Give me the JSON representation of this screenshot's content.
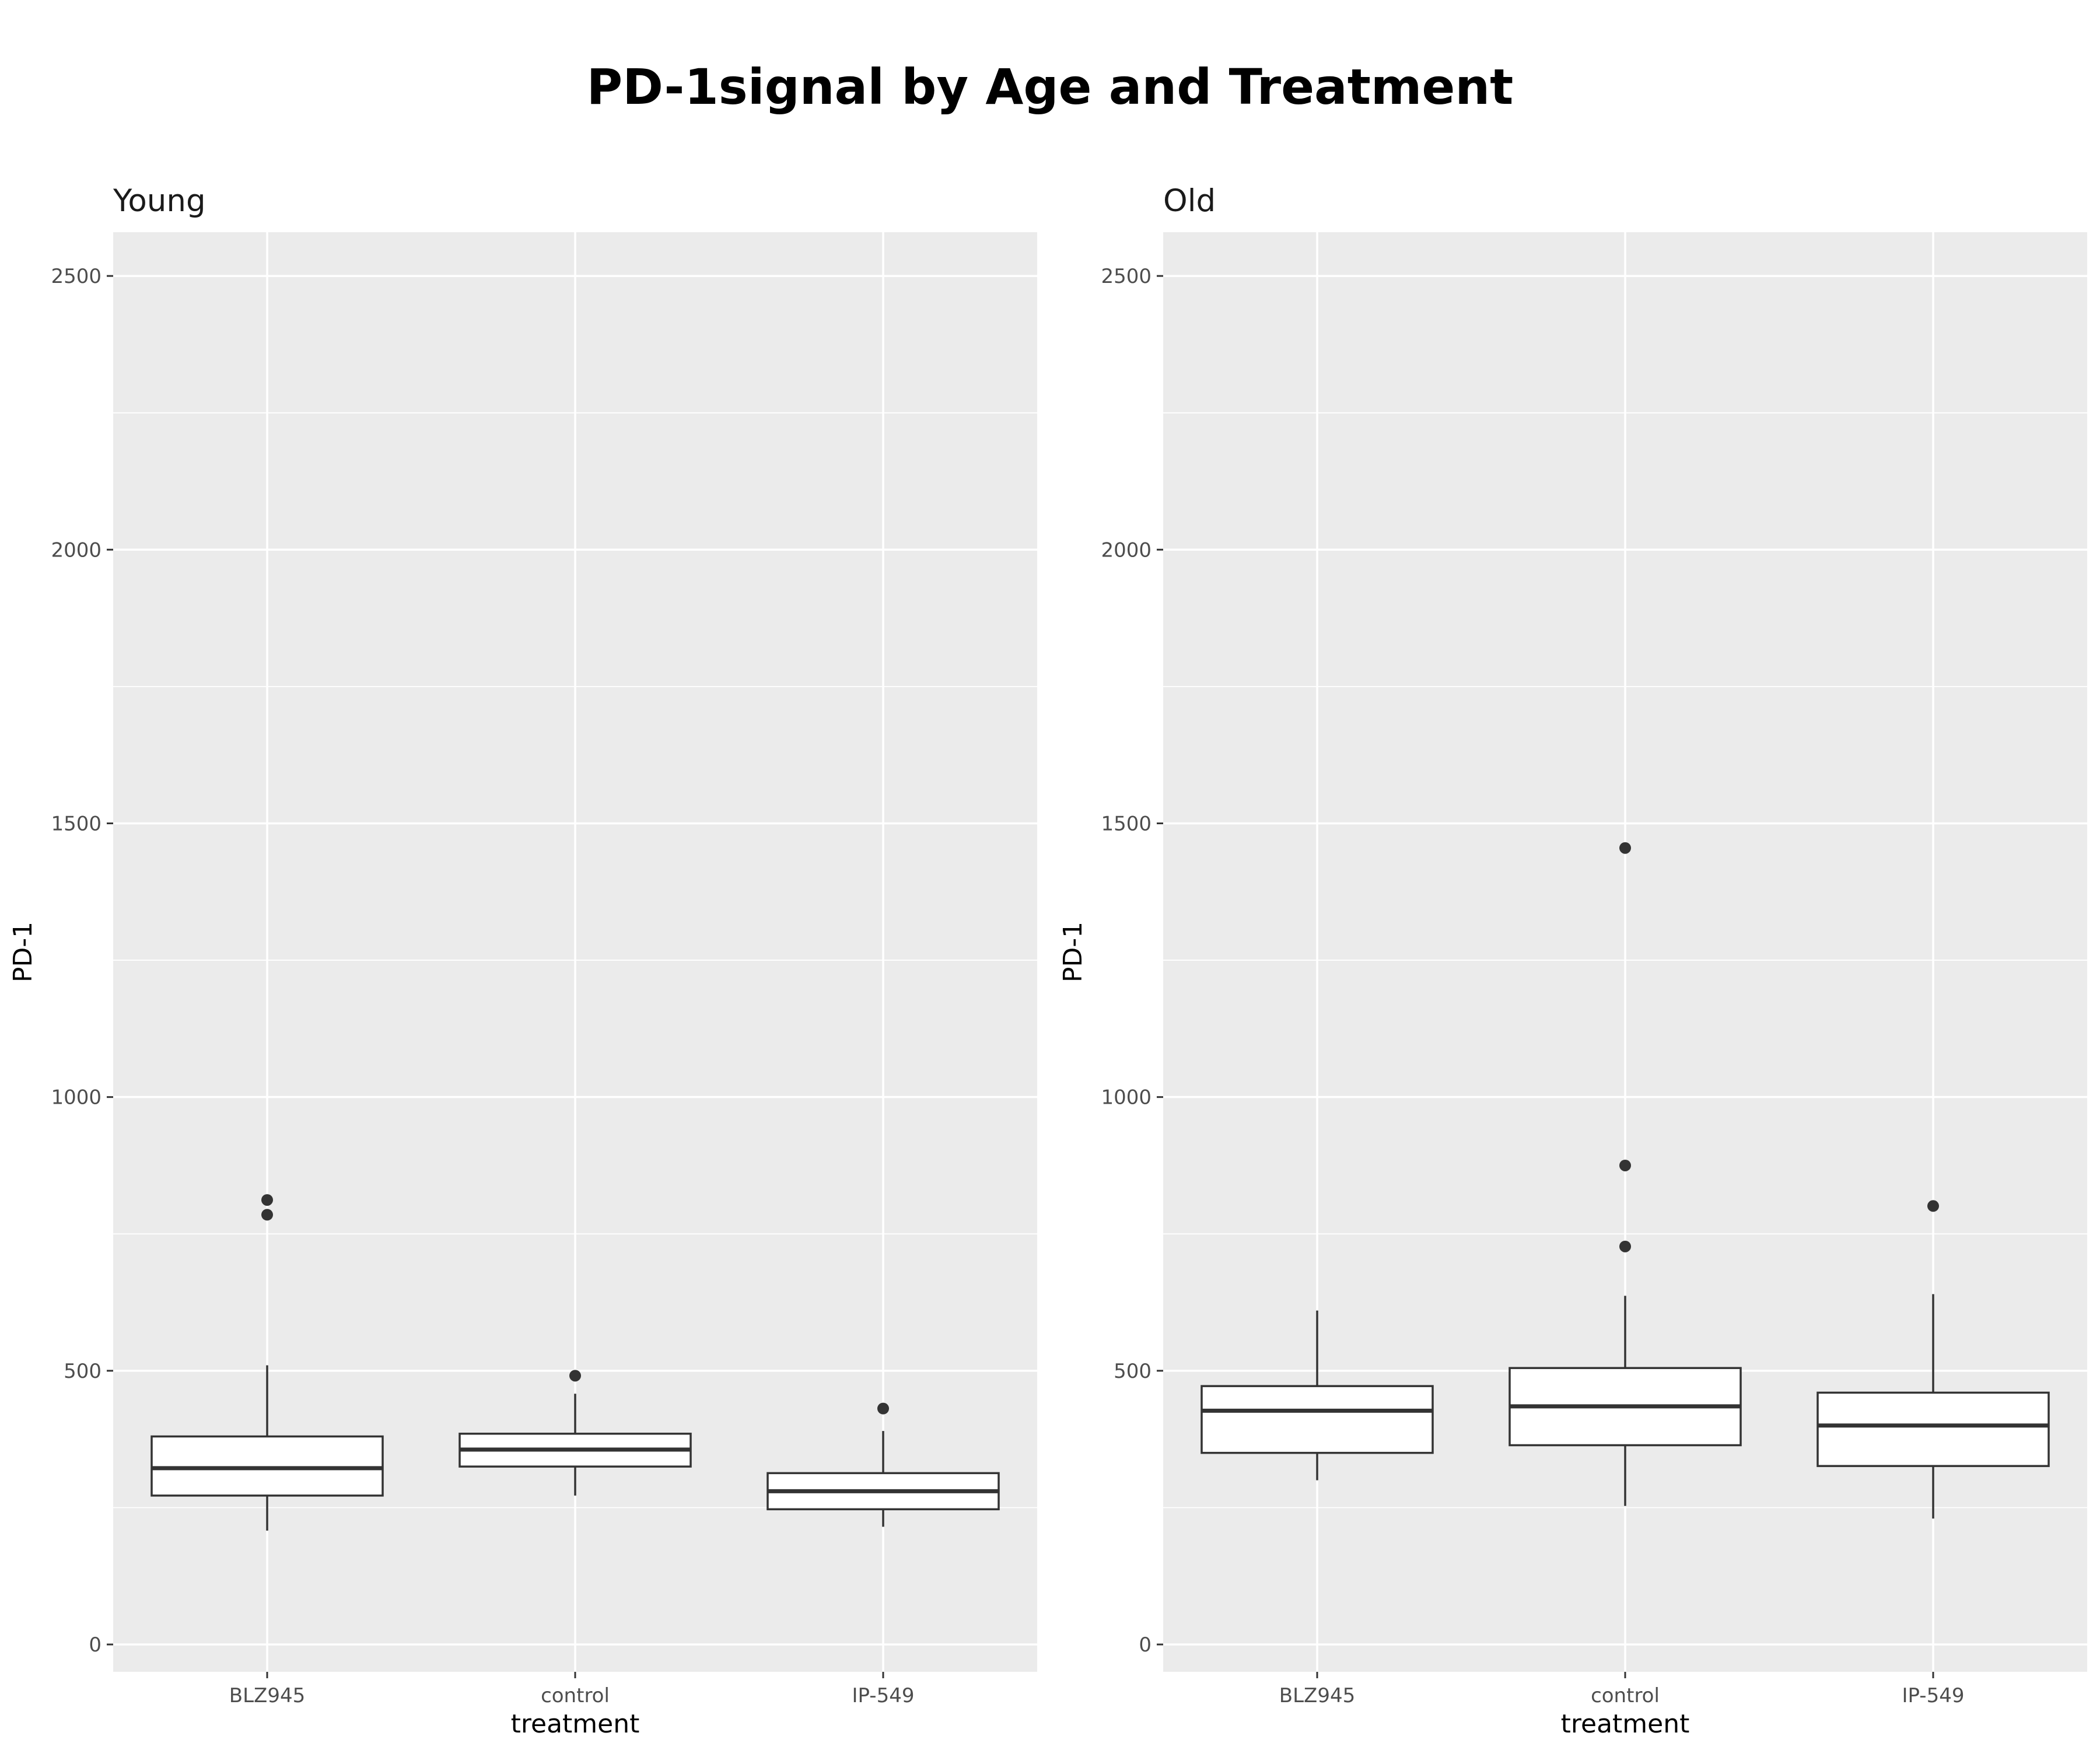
{
  "chart_data": {
    "type": "boxplot",
    "title": "PD-1signal by Age and Treatment",
    "xlabel": "treatment",
    "ylabel": "PD-1",
    "ylim": [
      -50,
      2580
    ],
    "yticks": [
      0,
      500,
      1000,
      1500,
      2000,
      2500
    ],
    "grid": true,
    "categories": [
      "BLZ945",
      "control",
      "IP-549"
    ],
    "facets": [
      {
        "name": "Young",
        "boxes": [
          {
            "category": "BLZ945",
            "whisker_low": 208,
            "q1": 272,
            "median": 322,
            "q3": 380,
            "whisker_high": 510,
            "outliers": [
              785,
              812
            ]
          },
          {
            "category": "control",
            "whisker_low": 272,
            "q1": 325,
            "median": 356,
            "q3": 385,
            "whisker_high": 458,
            "outliers": [
              491
            ]
          },
          {
            "category": "IP-549",
            "whisker_low": 215,
            "q1": 247,
            "median": 280,
            "q3": 313,
            "whisker_high": 390,
            "outliers": [
              431
            ]
          }
        ]
      },
      {
        "name": "Old",
        "boxes": [
          {
            "category": "BLZ945",
            "whisker_low": 300,
            "q1": 350,
            "median": 427,
            "q3": 472,
            "whisker_high": 610,
            "outliers": []
          },
          {
            "category": "control",
            "whisker_low": 253,
            "q1": 364,
            "median": 435,
            "q3": 505,
            "whisker_high": 637,
            "outliers": [
              727,
              875,
              1455
            ]
          },
          {
            "category": "IP-549",
            "whisker_low": 230,
            "q1": 326,
            "median": 400,
            "q3": 460,
            "whisker_high": 640,
            "outliers": [
              801
            ]
          }
        ]
      }
    ]
  }
}
